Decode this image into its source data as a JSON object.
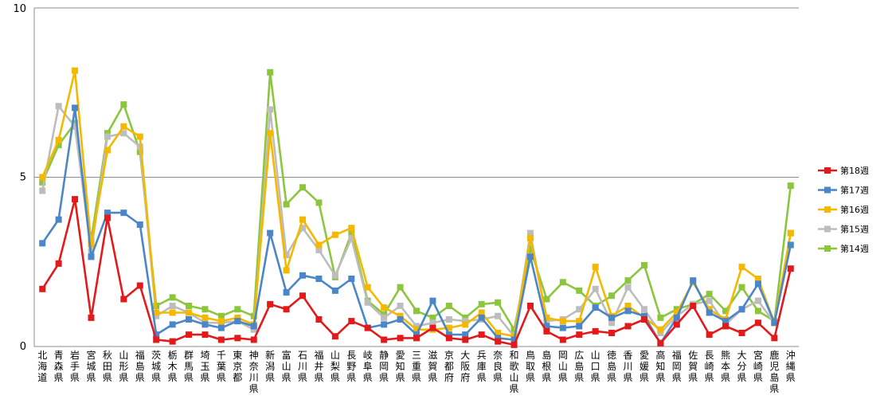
{
  "chart_data": {
    "type": "line",
    "categories": [
      "北海道",
      "青森県",
      "岩手県",
      "宮城県",
      "秋田県",
      "山形県",
      "福島県",
      "茨城県",
      "栃木県",
      "群馬県",
      "埼玉県",
      "千葉県",
      "東京都",
      "神奈川県",
      "新潟県",
      "富山県",
      "石川県",
      "福井県",
      "山梨県",
      "長野県",
      "岐阜県",
      "静岡県",
      "愛知県",
      "三重県",
      "滋賀県",
      "京都府",
      "大阪府",
      "兵庫県",
      "奈良県",
      "和歌山県",
      "鳥取県",
      "島根県",
      "岡山県",
      "広島県",
      "山口県",
      "徳島県",
      "香川県",
      "愛媛県",
      "高知県",
      "福岡県",
      "佐賀県",
      "長崎県",
      "熊本県",
      "大分県",
      "宮崎県",
      "鹿児島県",
      "沖縄県"
    ],
    "ylim": [
      0,
      10
    ],
    "yticks": [
      "0",
      "5",
      "10"
    ],
    "grid": true,
    "legend_position": "right",
    "series": [
      {
        "name": "第18週",
        "color": "#e31a1c",
        "values": [
          1.7,
          2.45,
          4.35,
          0.85,
          3.8,
          1.4,
          1.8,
          0.2,
          0.15,
          0.35,
          0.35,
          0.2,
          0.25,
          0.2,
          1.25,
          1.1,
          1.5,
          0.8,
          0.3,
          0.75,
          0.55,
          0.2,
          0.25,
          0.25,
          0.55,
          0.25,
          0.2,
          0.35,
          0.15,
          0.05,
          1.2,
          0.45,
          0.2,
          0.35,
          0.45,
          0.4,
          0.6,
          0.8,
          0.1,
          0.65,
          1.2,
          0.35,
          0.6,
          0.4,
          0.7,
          0.25,
          2.3
        ]
      },
      {
        "name": "第17週",
        "color": "#4a86c8",
        "values": [
          3.05,
          3.75,
          7.05,
          2.65,
          3.95,
          3.95,
          3.6,
          0.35,
          0.65,
          0.8,
          0.65,
          0.55,
          0.75,
          0.6,
          3.35,
          1.6,
          2.1,
          2.0,
          1.65,
          2.0,
          0.55,
          0.65,
          0.8,
          0.35,
          1.35,
          0.35,
          0.35,
          0.85,
          0.25,
          0.2,
          2.65,
          0.6,
          0.55,
          0.6,
          1.15,
          0.85,
          1.05,
          0.9,
          0.1,
          0.85,
          1.95,
          1.0,
          0.75,
          1.1,
          1.85,
          0.7,
          3.0
        ]
      },
      {
        "name": "第16週",
        "color": "#f5b800",
        "values": [
          5.0,
          6.1,
          8.15,
          3.0,
          5.8,
          6.5,
          6.2,
          1.0,
          1.0,
          1.0,
          0.85,
          0.75,
          0.85,
          0.65,
          6.3,
          2.25,
          3.75,
          3.0,
          3.3,
          3.5,
          1.75,
          1.15,
          0.9,
          0.5,
          0.5,
          0.55,
          0.65,
          1.0,
          0.4,
          0.3,
          3.2,
          0.85,
          0.75,
          0.75,
          2.35,
          0.9,
          1.2,
          0.85,
          0.5,
          1.0,
          1.9,
          1.1,
          0.8,
          2.35,
          2.0,
          0.7,
          3.35
        ]
      },
      {
        "name": "第15週",
        "color": "#bdbdbd",
        "values": [
          4.6,
          7.1,
          6.5,
          2.8,
          6.2,
          6.3,
          5.9,
          0.9,
          1.2,
          1.0,
          0.7,
          0.7,
          0.75,
          0.5,
          7.0,
          2.7,
          3.5,
          2.85,
          2.1,
          3.2,
          1.3,
          0.85,
          1.2,
          0.6,
          0.7,
          0.8,
          0.75,
          0.8,
          0.9,
          0.3,
          3.35,
          0.75,
          0.8,
          1.1,
          1.7,
          0.7,
          1.75,
          1.1,
          0.4,
          0.9,
          1.25,
          1.35,
          0.65,
          1.1,
          1.35,
          0.7,
          3.35
        ]
      },
      {
        "name": "第14週",
        "color": "#8cc63f",
        "values": [
          4.85,
          5.95,
          6.6,
          3.15,
          6.3,
          7.15,
          5.75,
          1.2,
          1.45,
          1.2,
          1.1,
          0.9,
          1.1,
          0.9,
          8.1,
          4.2,
          4.7,
          4.25,
          2.05,
          3.35,
          1.35,
          0.95,
          1.75,
          1.05,
          0.85,
          1.2,
          0.85,
          1.25,
          1.3,
          0.5,
          2.9,
          1.4,
          1.9,
          1.65,
          1.2,
          1.5,
          1.95,
          2.4,
          0.85,
          1.1,
          1.25,
          1.55,
          1.05,
          1.75,
          1.05,
          0.75,
          4.75
        ]
      }
    ]
  }
}
